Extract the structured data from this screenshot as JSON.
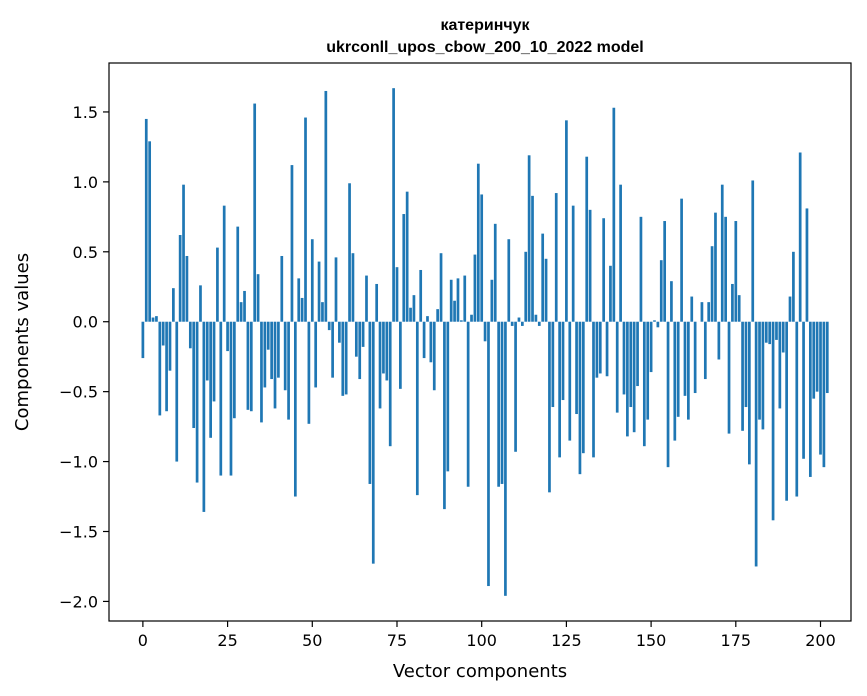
{
  "chart_data": {
    "type": "bar",
    "title": "катеринчук",
    "subtitle": "ukrconll_upos_cbow_200_10_2022 model",
    "xlabel": "Vector components",
    "ylabel": "Components values",
    "xlim": [
      -10,
      209
    ],
    "ylim": [
      -2.14,
      1.85
    ],
    "xticks": [
      0,
      25,
      50,
      75,
      100,
      125,
      150,
      175,
      200
    ],
    "yticks": [
      -2.0,
      -1.5,
      -1.0,
      -0.5,
      0.0,
      0.5,
      1.0,
      1.5
    ],
    "ytick_labels": [
      "−2.0",
      "−1.5",
      "−1.0",
      "−0.5",
      "0.0",
      "0.5",
      "1.0",
      "1.5"
    ],
    "bar_color": "#1f77b4",
    "grid": false,
    "values": [
      -0.26,
      1.45,
      1.29,
      0.03,
      0.04,
      -0.67,
      -0.17,
      -0.64,
      -0.35,
      0.24,
      -1.0,
      0.62,
      0.98,
      0.47,
      -0.19,
      -0.76,
      -1.15,
      0.26,
      -1.36,
      -0.42,
      -0.83,
      -0.57,
      0.53,
      -1.1,
      0.83,
      -0.21,
      -1.1,
      -0.69,
      0.68,
      0.14,
      0.22,
      -0.63,
      -0.64,
      1.56,
      0.34,
      -0.72,
      -0.47,
      -0.2,
      -0.41,
      -0.62,
      -0.4,
      0.47,
      -0.49,
      -0.7,
      1.12,
      -1.25,
      0.31,
      0.17,
      1.46,
      -0.73,
      0.59,
      -0.47,
      0.43,
      0.14,
      1.65,
      -0.06,
      -0.4,
      0.46,
      -0.15,
      -0.53,
      -0.52,
      0.99,
      0.49,
      -0.25,
      -0.41,
      -0.18,
      0.33,
      -1.16,
      -1.73,
      0.27,
      -0.62,
      -0.37,
      -0.42,
      -0.89,
      1.67,
      0.39,
      -0.48,
      0.77,
      0.93,
      0.1,
      0.19,
      -1.24,
      0.37,
      -0.26,
      0.04,
      -0.29,
      -0.49,
      0.09,
      0.49,
      -1.34,
      -1.07,
      0.3,
      0.15,
      0.31,
      0.01,
      0.33,
      -1.18,
      0.05,
      0.48,
      1.13,
      0.91,
      -0.14,
      -1.89,
      0.3,
      0.7,
      -1.18,
      -1.16,
      -1.96,
      0.59,
      -0.03,
      -0.93,
      0.03,
      -0.03,
      0.5,
      1.19,
      0.9,
      0.05,
      -0.03,
      0.63,
      0.45,
      -1.22,
      -0.61,
      0.92,
      -0.97,
      -0.56,
      1.44,
      -0.85,
      0.83,
      -0.66,
      -1.09,
      -0.94,
      1.18,
      0.8,
      -0.97,
      -0.4,
      -0.37,
      0.74,
      -0.39,
      0.4,
      1.53,
      -0.65,
      0.98,
      -0.52,
      -0.82,
      -0.61,
      -0.79,
      -0.46,
      0.75,
      -0.89,
      -0.7,
      -0.36,
      0.01,
      -0.04,
      0.44,
      0.72,
      -1.04,
      0.29,
      -0.85,
      -0.68,
      0.88,
      -0.53,
      -0.7,
      0.18,
      -0.51,
      0.0,
      0.14,
      -0.41,
      0.14,
      0.54,
      0.78,
      -0.27,
      0.98,
      0.75,
      -0.8,
      0.27,
      0.72,
      0.19,
      -0.78,
      -0.61,
      -1.02,
      1.01,
      -1.75,
      -0.7,
      -0.77,
      -0.15,
      -0.16,
      -1.42,
      -0.13,
      -0.62,
      -0.22,
      -1.28,
      0.18,
      0.5,
      -1.25,
      1.21,
      -0.98,
      0.81,
      -1.11,
      -0.55,
      -0.5,
      -0.95,
      -1.04,
      -0.51
    ]
  }
}
